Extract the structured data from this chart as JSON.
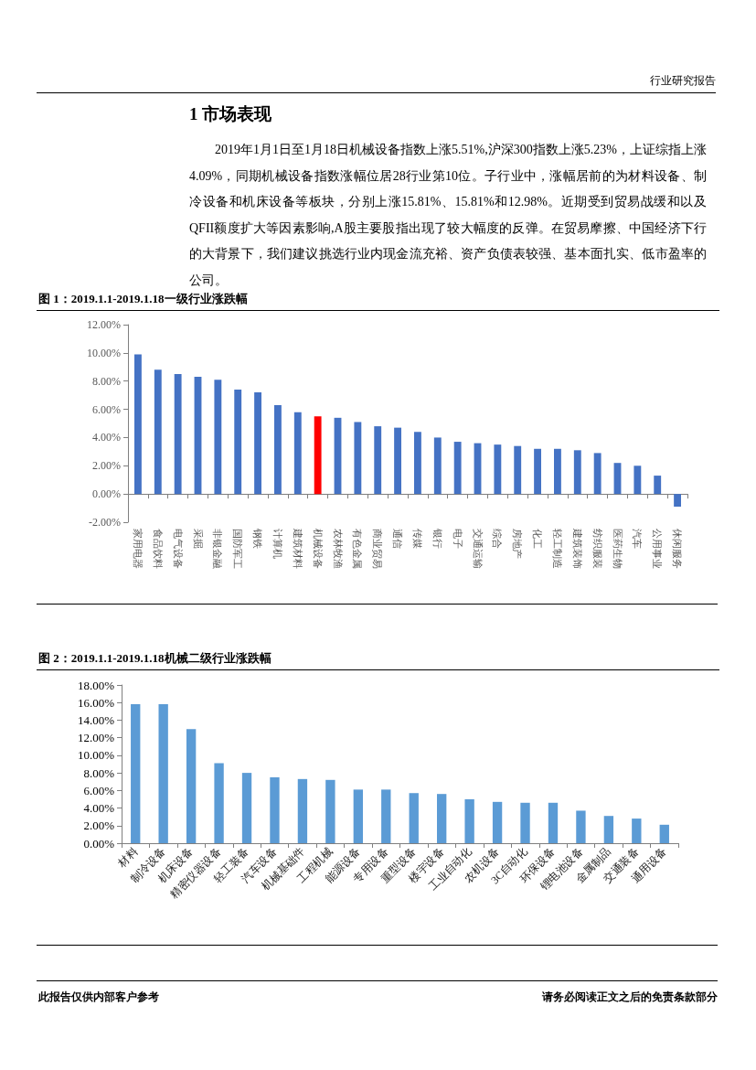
{
  "chart_data": [
    {
      "type": "other",
      "title": "1 市场表现",
      "annotations": [
        "行业研究报告",
        "2019年1月1日至1月18日机械设备指数上涨5.51%,沪深300指数上涨5.23%，上证综指上涨4.09%，同期机械设备指数涨幅位居28行业第10位。子行业中，涨幅居前的为材料设备、制冷设备和机床设备等板块，分别上涨15.81%、15.81%和12.98%。近期受到贸易战缓和以及QFII额度扩大等因素影响,A股主要股指出现了较大幅度的反弹。在贸易摩擦、中国经济下行的大背景下，我们建议挑选行业内现金流充裕、资产负债表较强、基本面扎实、低市盈率的公司。"
      ]
    },
    {
      "type": "bar",
      "title": "图 1：2019.1.1-2019.1.18一级行业涨跌幅",
      "categories": [
        "家用电器",
        "食品饮料",
        "电气设备",
        "采掘",
        "非银金融",
        "国防军工",
        "钢铁",
        "计算机",
        "建筑材料",
        "机械设备",
        "农林牧渔",
        "有色金属",
        "商业贸易",
        "通信",
        "传媒",
        "银行",
        "电子",
        "交通运输",
        "综合",
        "房地产",
        "化工",
        "轻工制造",
        "建筑装饰",
        "纺织服装",
        "医药生物",
        "汽车",
        "公用事业",
        "休闲服务"
      ],
      "values": [
        9.9,
        8.8,
        8.5,
        8.3,
        8.1,
        7.4,
        7.2,
        6.3,
        5.8,
        5.51,
        5.4,
        5.1,
        4.8,
        4.7,
        4.4,
        4.0,
        3.7,
        3.6,
        3.5,
        3.4,
        3.2,
        3.2,
        3.1,
        2.9,
        2.2,
        2.0,
        1.3,
        -0.9
      ],
      "colors": [
        "#4472c4",
        "#4472c4",
        "#4472c4",
        "#4472c4",
        "#4472c4",
        "#4472c4",
        "#4472c4",
        "#4472c4",
        "#4472c4",
        "#ff0000",
        "#4472c4",
        "#4472c4",
        "#4472c4",
        "#4472c4",
        "#4472c4",
        "#4472c4",
        "#4472c4",
        "#4472c4",
        "#4472c4",
        "#4472c4",
        "#4472c4",
        "#4472c4",
        "#4472c4",
        "#4472c4",
        "#4472c4",
        "#4472c4",
        "#4472c4",
        "#4472c4"
      ],
      "ylim": [
        -2,
        12
      ],
      "yticks": [
        {
          "value": -2,
          "label": "-2.00%"
        },
        {
          "value": 0,
          "label": "0.00%"
        },
        {
          "value": 2,
          "label": "2.00%"
        },
        {
          "value": 4,
          "label": "4.00%"
        },
        {
          "value": 6,
          "label": "6.00%"
        },
        {
          "value": 8,
          "label": "8.00%"
        },
        {
          "value": 10,
          "label": "10.00%"
        },
        {
          "value": 12,
          "label": "12.00%"
        }
      ]
    },
    {
      "type": "bar",
      "title": "图 2：2019.1.1-2019.1.18机械二级行业涨跌幅",
      "categories": [
        "材料",
        "制冷设备",
        "机床设备",
        "精密仪器设备",
        "轻工装备",
        "汽车设备",
        "机械基础件",
        "工程机械",
        "能源设备",
        "专用设备",
        "重型设备",
        "楼宇设备",
        "工业自动化",
        "农机设备",
        "3C自动化",
        "环保设备",
        "锂电池设备",
        "金属制品",
        "交通装备",
        "通用设备"
      ],
      "values": [
        15.81,
        15.81,
        12.98,
        9.1,
        8.0,
        7.5,
        7.3,
        7.2,
        6.1,
        6.1,
        5.7,
        5.6,
        5.0,
        4.7,
        4.6,
        4.6,
        3.7,
        3.1,
        2.8,
        2.1
      ],
      "color": "#5b9bd5",
      "ylim": [
        0,
        18
      ],
      "yticks": [
        {
          "value": 0,
          "label": "0.00%"
        },
        {
          "value": 2,
          "label": "2.00%"
        },
        {
          "value": 4,
          "label": "4.00%"
        },
        {
          "value": 6,
          "label": "6.00%"
        },
        {
          "value": 8,
          "label": "8.00%"
        },
        {
          "value": 10,
          "label": "10.00%"
        },
        {
          "value": 12,
          "label": "12.00%"
        },
        {
          "value": 14,
          "label": "14.00%"
        },
        {
          "value": 16,
          "label": "16.00%"
        },
        {
          "value": 18,
          "label": "18.00%"
        }
      ]
    },
    {
      "type": "other",
      "annotations": [
        "此报告仅供内部客户参考",
        "请务必阅读正文之后的免责条款部分"
      ]
    }
  ]
}
